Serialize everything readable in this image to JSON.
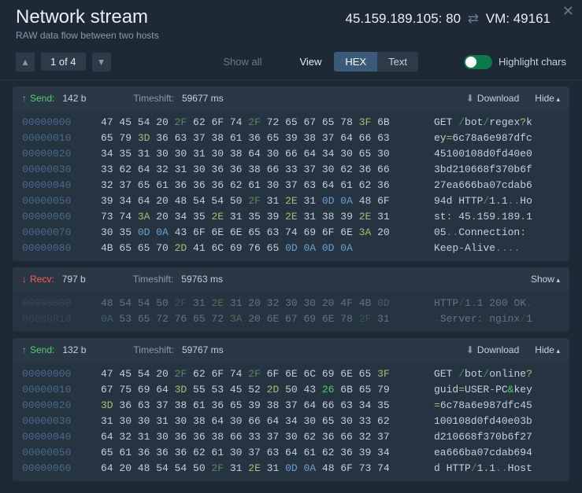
{
  "header": {
    "title": "Network stream",
    "subtitle": "RAW data flow between two hosts",
    "ip": "45.159.189.105",
    "port": "80",
    "vm_label": "VM:",
    "vm_port": "49161"
  },
  "toolbar": {
    "page_text": "1 of 4",
    "show_all": "Show all",
    "view_label": "View",
    "hex_label": "HEX",
    "text_label": "Text",
    "highlight_label": "Highlight chars"
  },
  "colors": {
    "bg": "#1e2936",
    "panel": "#263340",
    "send": "#4dd06a",
    "recv": "#ff5a4d",
    "offset": "#4a6a8a",
    "slash_hex": "#5a8a5a",
    "sym_hex": "#a0c070",
    "toggle_on": "#0d7a4a"
  },
  "sections": [
    {
      "kind": "send",
      "label": "Send:",
      "bytes": "142 b",
      "timeshift_label": "Timeshift:",
      "timeshift": "59677 ms",
      "download": "Download",
      "toggle": "Hide",
      "offsets": [
        "00000000",
        "00000010",
        "00000020",
        "00000030",
        "00000040",
        "00000050",
        "00000060",
        "00000070",
        "00000080"
      ],
      "hex": [
        [
          [
            "47 45 54 20 ",
            ""
          ],
          [
            "2F",
            "s"
          ],
          [
            " 62 6F 74 ",
            ""
          ],
          [
            "2F",
            "s"
          ],
          [
            " 72 65 67 65 78 ",
            ""
          ],
          [
            "3F",
            "y"
          ],
          [
            " 6B",
            ""
          ]
        ],
        [
          [
            "65 79 ",
            ""
          ],
          [
            "3D",
            "y"
          ],
          [
            " 36 63 37 38 61 36 65 39 38 37 64 66 63",
            ""
          ]
        ],
        [
          [
            "34 35 31 30 30 31 30 38 64 30 66 64 34 30 65 30",
            ""
          ]
        ],
        [
          [
            "33 62 64 32 31 30 36 36 38 66 33 37 30 62 36 66",
            ""
          ]
        ],
        [
          [
            "32 37 65 61 36 36 36 62 61 30 37 63 64 61 62 36",
            ""
          ]
        ],
        [
          [
            "39 34 64 20 48 54 54 50 ",
            ""
          ],
          [
            "2F",
            "s"
          ],
          [
            " 31 ",
            ""
          ],
          [
            "2E",
            "y"
          ],
          [
            " 31 ",
            ""
          ],
          [
            "0D 0A",
            "b"
          ],
          [
            " 48 6F",
            ""
          ]
        ],
        [
          [
            "73 74 ",
            ""
          ],
          [
            "3A",
            "y"
          ],
          [
            " 20 34 35 ",
            ""
          ],
          [
            "2E",
            "y"
          ],
          [
            " 31 35 39 ",
            ""
          ],
          [
            "2E",
            "y"
          ],
          [
            " 31 38 39 ",
            ""
          ],
          [
            "2E",
            "y"
          ],
          [
            " 31",
            ""
          ]
        ],
        [
          [
            "30 35 ",
            ""
          ],
          [
            "0D 0A",
            "b"
          ],
          [
            " 43 6F 6E 6E 65 63 74 69 6F 6E ",
            ""
          ],
          [
            "3A",
            "y"
          ],
          [
            " 20",
            ""
          ]
        ],
        [
          [
            "4B 65 65 70 ",
            ""
          ],
          [
            "2D",
            "y"
          ],
          [
            " 41 6C 69 76 65 ",
            ""
          ],
          [
            "0D 0A 0D 0A",
            "b"
          ]
        ]
      ],
      "ascii": [
        [
          [
            "GET ",
            ""
          ],
          [
            "/",
            "s"
          ],
          [
            "bot",
            ""
          ],
          [
            "/",
            "s"
          ],
          [
            "regex",
            ""
          ],
          [
            "?",
            "y"
          ],
          [
            "k",
            ""
          ]
        ],
        [
          [
            "ey",
            ""
          ],
          [
            "=",
            "y"
          ],
          [
            "6c78a6e987dfc",
            ""
          ]
        ],
        [
          [
            "45100108d0fd40e0",
            ""
          ]
        ],
        [
          [
            "3bd210668f370b6f",
            ""
          ]
        ],
        [
          [
            "27ea666ba07cdab6",
            ""
          ]
        ],
        [
          [
            "94d HTTP",
            ""
          ],
          [
            "/",
            "s"
          ],
          [
            "1",
            ""
          ],
          [
            ".",
            "y"
          ],
          [
            "1",
            ""
          ],
          [
            "..",
            "d"
          ],
          [
            "Ho",
            ""
          ]
        ],
        [
          [
            "st",
            ""
          ],
          [
            ":",
            "y"
          ],
          [
            " 45",
            ""
          ],
          [
            ".",
            "y"
          ],
          [
            "159",
            ""
          ],
          [
            ".",
            "y"
          ],
          [
            "189",
            ""
          ],
          [
            ".",
            "y"
          ],
          [
            "1",
            ""
          ]
        ],
        [
          [
            "05",
            ""
          ],
          [
            "..",
            "d"
          ],
          [
            "Connection",
            ""
          ],
          [
            ":",
            "y"
          ],
          [
            " ",
            ""
          ]
        ],
        [
          [
            "Keep",
            ""
          ],
          [
            "-",
            "y"
          ],
          [
            "Alive",
            ""
          ],
          [
            "....",
            "d"
          ]
        ]
      ]
    },
    {
      "kind": "recv",
      "label": "Recv:",
      "bytes": "797 b",
      "timeshift_label": "Timeshift:",
      "timeshift": "59763 ms",
      "toggle": "Show",
      "dim": true,
      "offsets": [
        "00000000",
        "00000010"
      ],
      "hex": [
        [
          [
            "48 54 54 50 ",
            ""
          ],
          [
            "2F",
            "s"
          ],
          [
            " 31 ",
            ""
          ],
          [
            "2E",
            "y"
          ],
          [
            " 31 20 32 30 30 20 4F 4B ",
            ""
          ],
          [
            "0D",
            "b"
          ]
        ],
        [
          [
            "0A",
            "b"
          ],
          [
            " 53 65 72 76 65 72 ",
            ""
          ],
          [
            "3A",
            "y"
          ],
          [
            " 20 6E 67 69 6E 78 ",
            ""
          ],
          [
            "2F",
            "s"
          ],
          [
            " 31",
            ""
          ]
        ]
      ],
      "ascii": [
        [
          [
            "HTTP",
            ""
          ],
          [
            "/",
            "s"
          ],
          [
            "1",
            ""
          ],
          [
            ".",
            "y"
          ],
          [
            "1 200 OK",
            ""
          ],
          [
            ".",
            "d"
          ]
        ],
        [
          [
            ".",
            "d"
          ],
          [
            "Server",
            ""
          ],
          [
            ":",
            "y"
          ],
          [
            " nginx",
            ""
          ],
          [
            "/",
            "s"
          ],
          [
            "1",
            ""
          ]
        ]
      ]
    },
    {
      "kind": "send",
      "label": "Send:",
      "bytes": "132 b",
      "timeshift_label": "Timeshift:",
      "timeshift": "59767 ms",
      "download": "Download",
      "toggle": "Hide",
      "offsets": [
        "00000000",
        "00000010",
        "00000020",
        "00000030",
        "00000040",
        "00000050",
        "00000060"
      ],
      "hex": [
        [
          [
            "47 45 54 20 ",
            ""
          ],
          [
            "2F",
            "s"
          ],
          [
            " 62 6F 74 ",
            ""
          ],
          [
            "2F",
            "s"
          ],
          [
            " 6F 6E 6C 69 6E 65 ",
            ""
          ],
          [
            "3F",
            "y"
          ]
        ],
        [
          [
            "67 75 69 64 ",
            ""
          ],
          [
            "3D",
            "y"
          ],
          [
            " 55 53 45 52 ",
            ""
          ],
          [
            "2D",
            "y"
          ],
          [
            " 50 43 ",
            ""
          ],
          [
            "26",
            "g"
          ],
          [
            " 6B 65 79",
            ""
          ]
        ],
        [
          [
            "3D",
            "y"
          ],
          [
            " 36 63 37 38 61 36 65 39 38 37 64 66 63 34 35",
            ""
          ]
        ],
        [
          [
            "31 30 30 31 30 38 64 30 66 64 34 30 65 30 33 62",
            ""
          ]
        ],
        [
          [
            "64 32 31 30 36 36 38 66 33 37 30 62 36 66 32 37",
            ""
          ]
        ],
        [
          [
            "65 61 36 36 36 62 61 30 37 63 64 61 62 36 39 34",
            ""
          ]
        ],
        [
          [
            "64 20 48 54 54 50 ",
            ""
          ],
          [
            "2F",
            "s"
          ],
          [
            " 31 ",
            ""
          ],
          [
            "2E",
            "y"
          ],
          [
            " 31 ",
            ""
          ],
          [
            "0D 0A",
            "b"
          ],
          [
            " 48 6F 73 74",
            ""
          ]
        ]
      ],
      "ascii": [
        [
          [
            "GET ",
            ""
          ],
          [
            "/",
            "s"
          ],
          [
            "bot",
            ""
          ],
          [
            "/",
            "s"
          ],
          [
            "online",
            ""
          ],
          [
            "?",
            "y"
          ]
        ],
        [
          [
            "guid",
            ""
          ],
          [
            "=",
            "y"
          ],
          [
            "USER",
            ""
          ],
          [
            "-",
            "y"
          ],
          [
            "PC",
            ""
          ],
          [
            "&",
            "g"
          ],
          [
            "key",
            ""
          ]
        ],
        [
          [
            "=",
            "y"
          ],
          [
            "6c78a6e987dfc45",
            ""
          ]
        ],
        [
          [
            "100108d0fd40e03b",
            ""
          ]
        ],
        [
          [
            "d210668f370b6f27",
            ""
          ]
        ],
        [
          [
            "ea666ba07cdab694",
            ""
          ]
        ],
        [
          [
            "d HTTP",
            ""
          ],
          [
            "/",
            "s"
          ],
          [
            "1",
            ""
          ],
          [
            ".",
            "y"
          ],
          [
            "1",
            ""
          ],
          [
            "..",
            "d"
          ],
          [
            "Host",
            ""
          ]
        ]
      ]
    }
  ]
}
